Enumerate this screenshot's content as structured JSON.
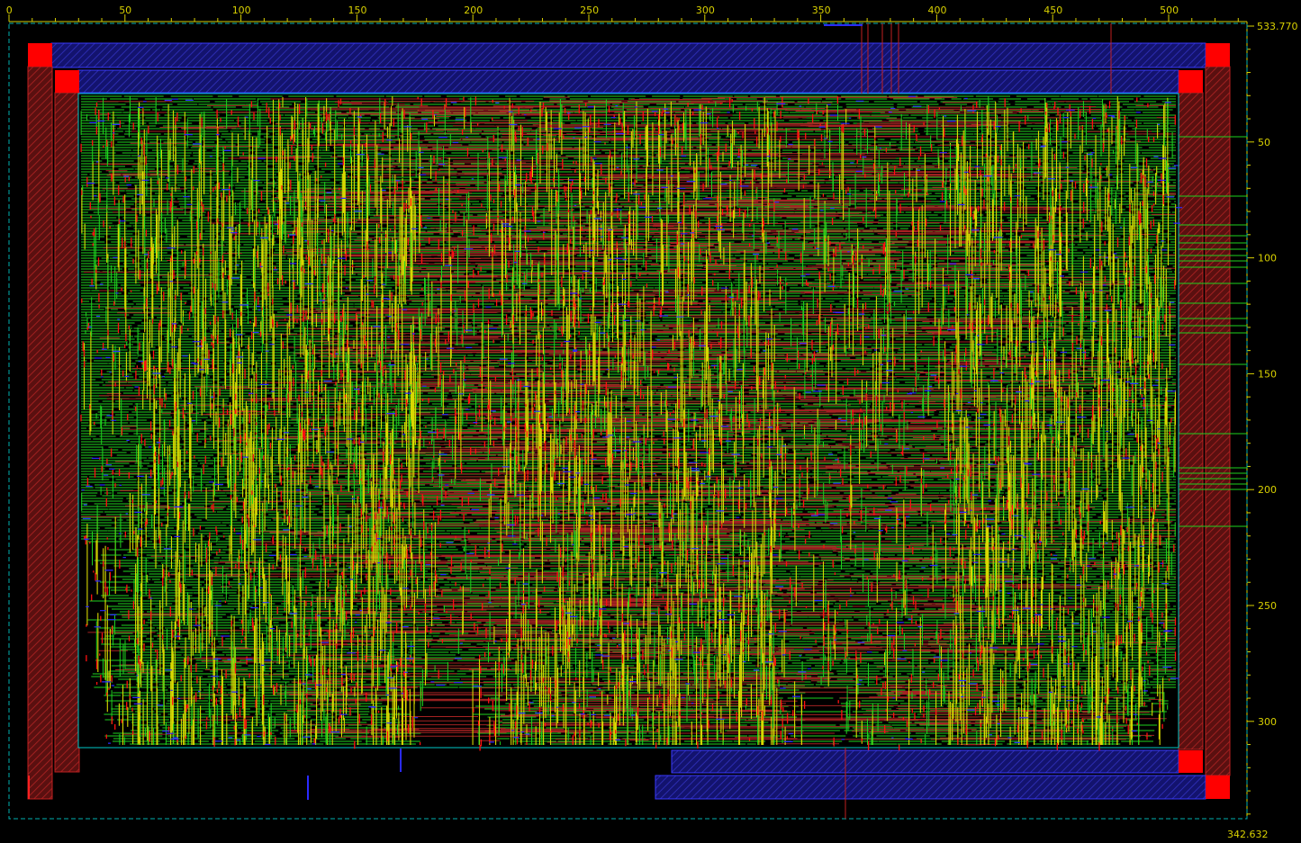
{
  "rulers": {
    "top_ticks": [
      "0",
      "50",
      "100",
      "150",
      "200",
      "250",
      "300",
      "350",
      "400",
      "450",
      "500"
    ],
    "right_ticks": [
      "50",
      "100",
      "150",
      "200",
      "250",
      "300"
    ],
    "corner_max": "533.770",
    "corner_height": "342.632"
  },
  "colors": {
    "background": "#000000",
    "ruler": "#d8d000",
    "boundary": "#00c8c8",
    "power_ring": "#1a1a8c",
    "power_ring_edge": "#3a3aff",
    "metal_red": "#a02020",
    "pad_red": "#ff0000",
    "metal_green": "#1ed21e",
    "metal_yellow": "#d8d800",
    "metal_blue": "#2a2aff"
  },
  "layout_view": {
    "die_width_um": 533.77,
    "die_height_um": 342.632,
    "core_x_range_um": [
      30,
      503
    ],
    "core_y_range_um": [
      30,
      322
    ]
  }
}
